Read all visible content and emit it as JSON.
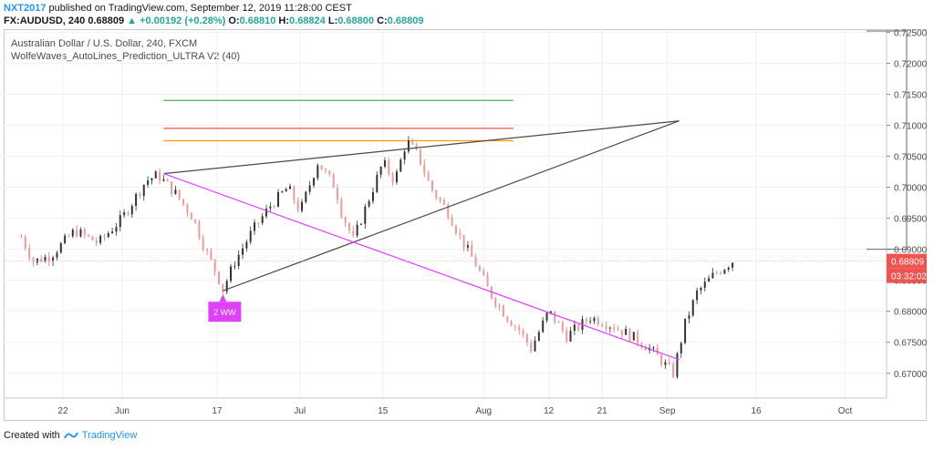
{
  "header": {
    "author": "NXT2017",
    "published": " published on TradingView.com, September 12, 2019 11:28:00 CEST",
    "symbol": "FX:AUDUSD, 240",
    "last": "0.68809",
    "change": "▲ +0.00192 (+0.28%)",
    "o_label": "O:",
    "o_val": "0.68810",
    "h_label": "H:",
    "h_val": "0.68824",
    "l_label": "L:",
    "l_val": "0.68800",
    "c_label": "C:",
    "c_val": "0.68809"
  },
  "legend": {
    "title": "Australian Dollar / U.S. Dollar, 240, FXCM",
    "indicator": "WolfeWaves_AutoLines_Prediction_ULTRA V2 (40)"
  },
  "footer": {
    "created": "Created with",
    "brand": "TradingView"
  },
  "colors": {
    "up": "#26a69a",
    "down": "#ef5350",
    "wedge": "#4a4a4a",
    "magenta": "#e040fb",
    "accent": "#2196f3"
  },
  "chart_data": {
    "type": "candlestick",
    "x_ticks": [
      "22",
      "Jun",
      "17",
      "Jul",
      "15",
      "Aug",
      "12",
      "21",
      "Sep",
      "16",
      "Oct"
    ],
    "y_ticks": [
      "0.67000",
      "0.67500",
      "0.68000",
      "0.68500",
      "0.69000",
      "0.69500",
      "0.70000",
      "0.70500",
      "0.71000",
      "0.71500",
      "0.72000",
      "0.72500"
    ],
    "ylim": [
      0.666,
      0.7255
    ],
    "last_price_label": "0.68809",
    "countdown_label": "03:32:02",
    "wave_label": "2 WW",
    "hlines": [
      {
        "color": "#4caf50",
        "value": 0.714
      },
      {
        "color": "#ef5350",
        "value": 0.7095
      },
      {
        "color": "#ff9800",
        "value": 0.7075
      }
    ],
    "price_path": [
      [
        0.692,
        "2019-05-15"
      ],
      [
        0.688,
        "2019-05-17"
      ],
      [
        0.689,
        "2019-05-20"
      ],
      [
        0.693,
        "2019-05-24"
      ],
      [
        0.691,
        "2019-05-28"
      ],
      [
        0.695,
        "2019-06-01"
      ],
      [
        0.701,
        "2019-06-05"
      ],
      [
        0.702,
        "2019-06-07"
      ],
      [
        0.699,
        "2019-06-10"
      ],
      [
        0.695,
        "2019-06-13"
      ],
      [
        0.69,
        "2019-06-15"
      ],
      [
        0.686,
        "2019-06-17"
      ],
      [
        0.6835,
        "2019-06-18"
      ],
      [
        0.688,
        "2019-06-20"
      ],
      [
        0.693,
        "2019-06-23"
      ],
      [
        0.697,
        "2019-06-26"
      ],
      [
        0.7,
        "2019-06-29"
      ],
      [
        0.696,
        "2019-07-01"
      ],
      [
        0.704,
        "2019-07-04"
      ],
      [
        0.7,
        "2019-07-07"
      ],
      [
        0.696,
        "2019-07-08"
      ],
      [
        0.6915,
        "2019-07-10"
      ],
      [
        0.699,
        "2019-07-13"
      ],
      [
        0.704,
        "2019-07-15"
      ],
      [
        0.701,
        "2019-07-17"
      ],
      [
        0.7075,
        "2019-07-19"
      ],
      [
        0.705,
        "2019-07-21"
      ],
      [
        0.7,
        "2019-07-23"
      ],
      [
        0.696,
        "2019-07-26"
      ],
      [
        0.692,
        "2019-07-28"
      ],
      [
        0.687,
        "2019-07-31"
      ],
      [
        0.683,
        "2019-08-02"
      ],
      [
        0.679,
        "2019-08-05"
      ],
      [
        0.677,
        "2019-08-07"
      ],
      [
        0.674,
        "2019-08-09"
      ],
      [
        0.68,
        "2019-08-12"
      ],
      [
        0.676,
        "2019-08-15"
      ],
      [
        0.679,
        "2019-08-19"
      ],
      [
        0.678,
        "2019-08-22"
      ],
      [
        0.676,
        "2019-08-26"
      ],
      [
        0.674,
        "2019-08-29"
      ],
      [
        0.67,
        "2019-09-02"
      ],
      [
        0.678,
        "2019-09-04"
      ],
      [
        0.683,
        "2019-09-06"
      ],
      [
        0.686,
        "2019-09-09"
      ],
      [
        0.6881,
        "2019-09-12"
      ]
    ],
    "wedge_lines": [
      {
        "from": [
          "2019-06-08",
          0.7022
        ],
        "to": [
          "2019-09-03",
          0.7107
        ]
      },
      {
        "from": [
          "2019-06-18",
          0.6833
        ],
        "to": [
          "2019-09-03",
          0.7107
        ]
      },
      {
        "from": [
          "2019-06-08",
          0.7022
        ],
        "to": [
          "2019-09-03",
          0.6722
        ]
      }
    ]
  }
}
